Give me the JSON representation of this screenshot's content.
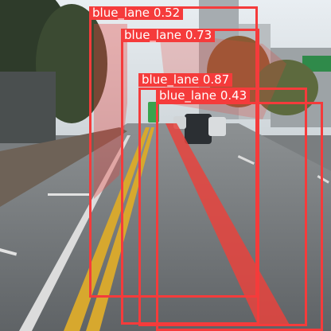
{
  "image": {
    "description_icon": "street-scene-photo"
  },
  "detections": [
    {
      "label": "blue_lane",
      "score": "0.52"
    },
    {
      "label": "blue_lane",
      "score": "0.73"
    },
    {
      "label": "blue_lane",
      "score": "0.87"
    },
    {
      "label": "blue_lane",
      "score": "0.43"
    }
  ],
  "colors": {
    "box": "#f53b3b",
    "label_text": "#ffffff",
    "lane_fill": "#e8433d"
  }
}
